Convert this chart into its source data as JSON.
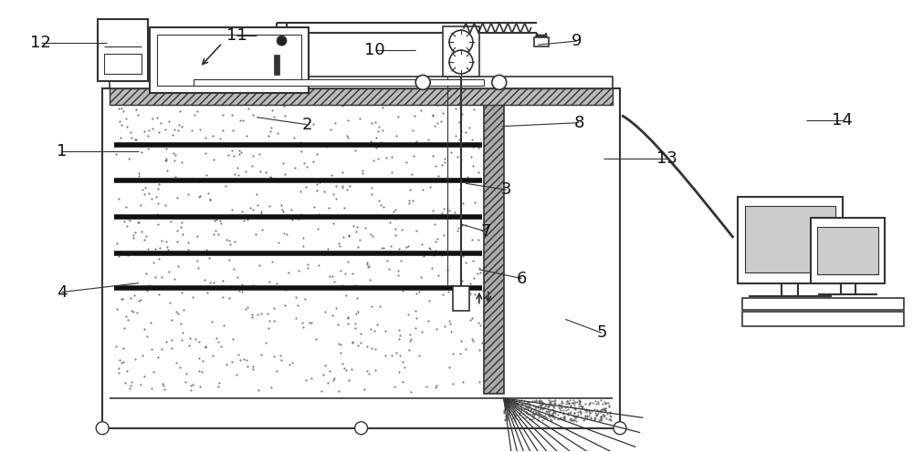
{
  "bg_color": "#ffffff",
  "line_color": "#333333",
  "fill_light": "#d8d8d8",
  "fill_sand": "#e8e4d8",
  "title": "",
  "labels_data": [
    [
      "1",
      1.5,
      3.3,
      0.65,
      3.3
    ],
    [
      "2",
      2.8,
      3.68,
      3.35,
      3.6
    ],
    [
      "3",
      5.1,
      2.95,
      5.55,
      2.88
    ],
    [
      "4",
      1.5,
      1.85,
      0.65,
      1.75
    ],
    [
      "5",
      6.2,
      1.45,
      6.6,
      1.3
    ],
    [
      "6",
      5.25,
      2.0,
      5.72,
      1.9
    ],
    [
      "7",
      5.05,
      2.5,
      5.32,
      2.42
    ],
    [
      "8",
      5.5,
      3.58,
      6.35,
      3.62
    ],
    [
      "9",
      5.9,
      4.48,
      6.32,
      4.52
    ],
    [
      "10",
      4.55,
      4.42,
      4.1,
      4.42
    ],
    [
      "11",
      2.8,
      4.58,
      2.58,
      4.58
    ],
    [
      "12",
      1.15,
      4.5,
      0.42,
      4.5
    ],
    [
      "13",
      6.62,
      3.22,
      7.32,
      3.22
    ],
    [
      "14",
      8.85,
      3.65,
      9.25,
      3.65
    ]
  ]
}
